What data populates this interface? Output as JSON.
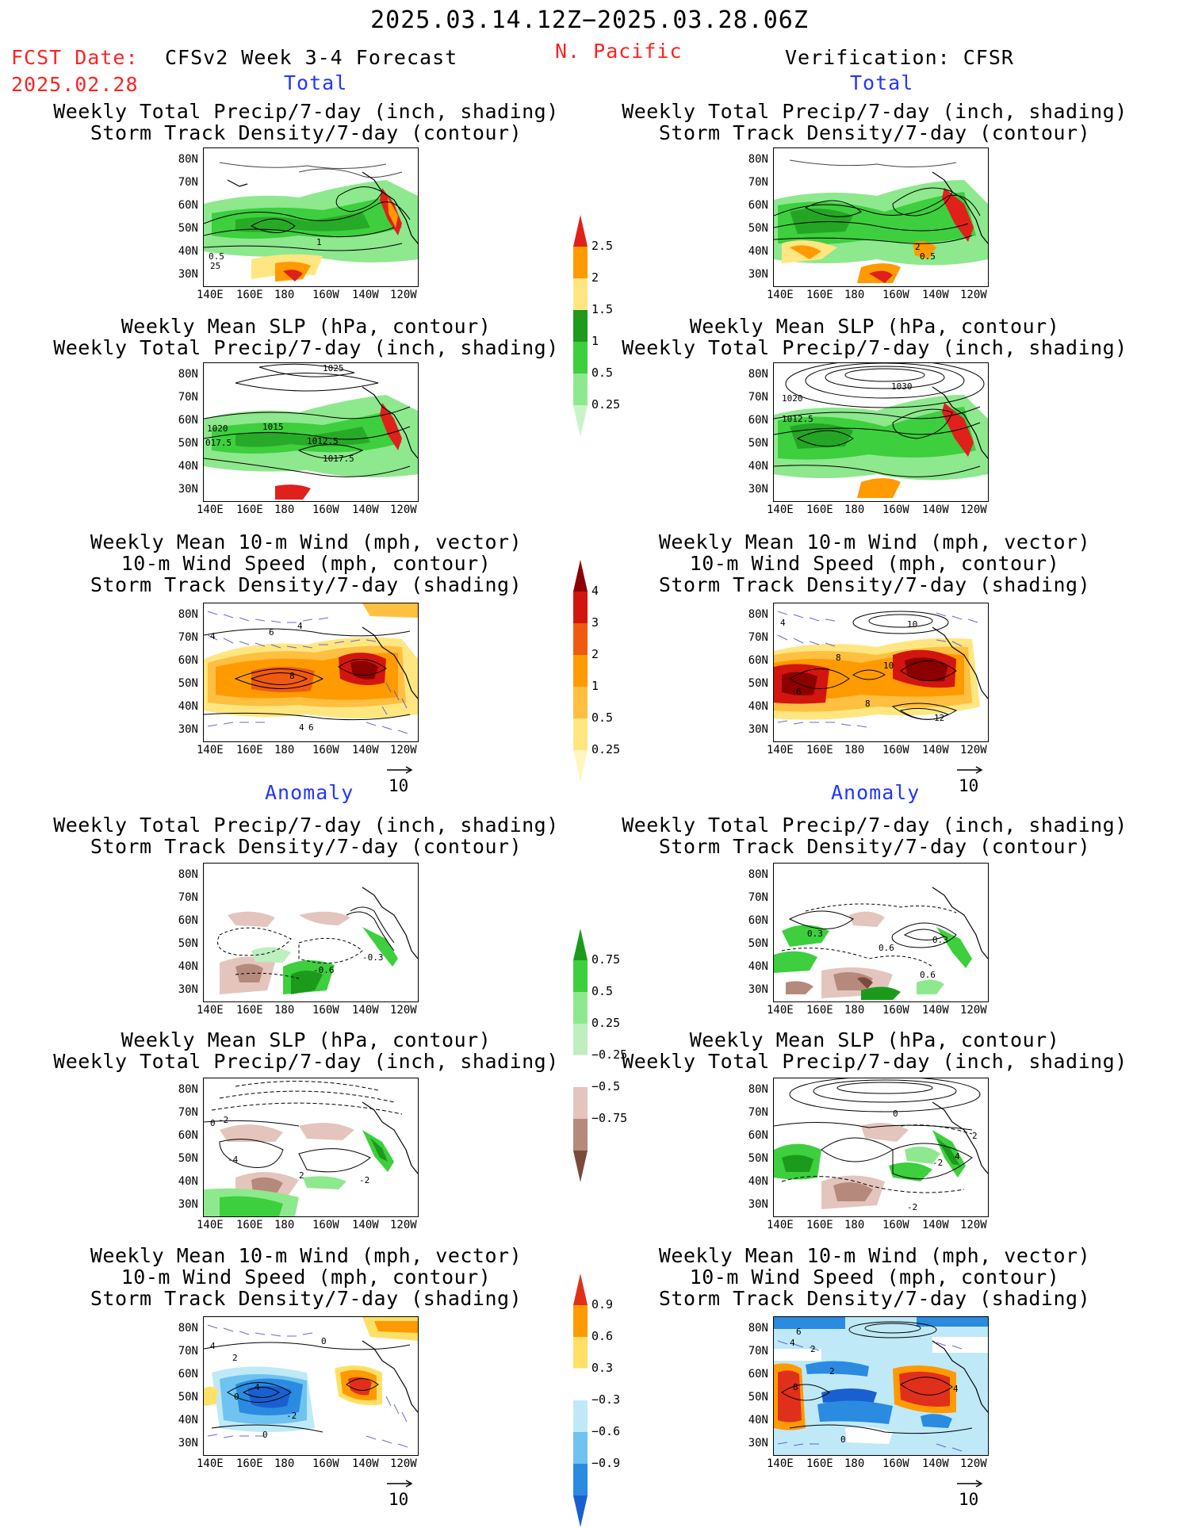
{
  "header": {
    "date_range": "2025.03.14.12Z−2025.03.28.06Z",
    "region": "N. Pacific",
    "fcst_label": "FCST Date:",
    "fcst_date": "2025.02.28",
    "model": "CFSv2 Week 3-4 Forecast",
    "verification": "Verification: CFSR"
  },
  "sections": {
    "total": "Total",
    "anomaly": "Anomaly"
  },
  "titles": {
    "precip_storm": "Weekly Total Precip/7-day (inch, shading)\nStorm Track Density/7-day (contour)",
    "slp_precip": "Weekly Mean SLP (hPa, contour)\nWeekly Total Precip/7-day (inch, shading)",
    "wind_storm": "Weekly Mean 10-m Wind (mph, vector)\n10-m Wind Speed (mph, contour)\nStorm Track Density/7-day (shading)"
  },
  "axes": {
    "lats": [
      "80N",
      "70N",
      "60N",
      "50N",
      "40N",
      "30N"
    ],
    "lons": [
      "140E",
      "160E",
      "180",
      "160W",
      "140W",
      "120W"
    ]
  },
  "vector_ref": "10",
  "colorbars": {
    "precip_total": {
      "labels": [
        "2.5",
        "2",
        "1.5",
        "1",
        "0.5",
        "0.25"
      ],
      "colors": [
        "#e0201b",
        "#ff9a00",
        "#ffe680",
        "#1e9a1e",
        "#3dcf3d",
        "#8ee88e",
        "#c8f5c8"
      ]
    },
    "storm_total": {
      "labels": [
        "4",
        "3",
        "2",
        "1",
        "0.5",
        "0.25"
      ],
      "colors": [
        "#8b0000",
        "#d3150f",
        "#f05a10",
        "#ff9a00",
        "#ffbf40",
        "#ffe680",
        "#fff6bf"
      ]
    },
    "precip_anom": {
      "labels": [
        "0.75",
        "0.5",
        "0.25",
        "−0.25",
        "−0.5",
        "−0.75"
      ],
      "colors": [
        "#1c9a1c",
        "#3dcf3d",
        "#8ee88e",
        "#bfeebf",
        "#ffffff",
        "#e3c5bd",
        "#b58a7c",
        "#7a4a3c"
      ]
    },
    "storm_anom": {
      "labels": [
        "0.9",
        "0.6",
        "0.3",
        "−0.3",
        "−0.6",
        "−0.9"
      ],
      "colors": [
        "#e0301b",
        "#ff9a00",
        "#ffe066",
        "#ffffff",
        "#bfe9f7",
        "#6ec3f0",
        "#2a8be0",
        "#1a5fd0"
      ]
    }
  },
  "contour_labels": {
    "p1_left": [
      "1",
      "0.5",
      "25"
    ],
    "p1_right": [
      "2",
      "0.5",
      "0.5"
    ],
    "p2_left": [
      "1025",
      "1020",
      "1015",
      "1012.5",
      "1017.5",
      "017.5"
    ],
    "p2_right": [
      "1030",
      "1020",
      "1012.5"
    ],
    "p3_left": [
      "4",
      "6",
      "8",
      "4",
      "6",
      "4"
    ],
    "p3_right": [
      "10",
      "8",
      "10",
      "8",
      "6",
      "12",
      "4"
    ],
    "p4_left": [
      "-0.3",
      "-0.6"
    ],
    "p4_right": [
      "0.3",
      "0.6",
      "0.3",
      "0.6"
    ],
    "p5_left": [
      "0",
      "-2",
      "-4",
      "2",
      "-2"
    ],
    "p5_right": [
      "0",
      "2",
      "-2",
      "4",
      "-2"
    ],
    "p6_left": [
      "4",
      "0",
      "2",
      "4",
      "0",
      "-2",
      "0"
    ],
    "p6_right": [
      "6",
      "4",
      "2",
      "8",
      "4",
      "2",
      "0"
    ]
  }
}
